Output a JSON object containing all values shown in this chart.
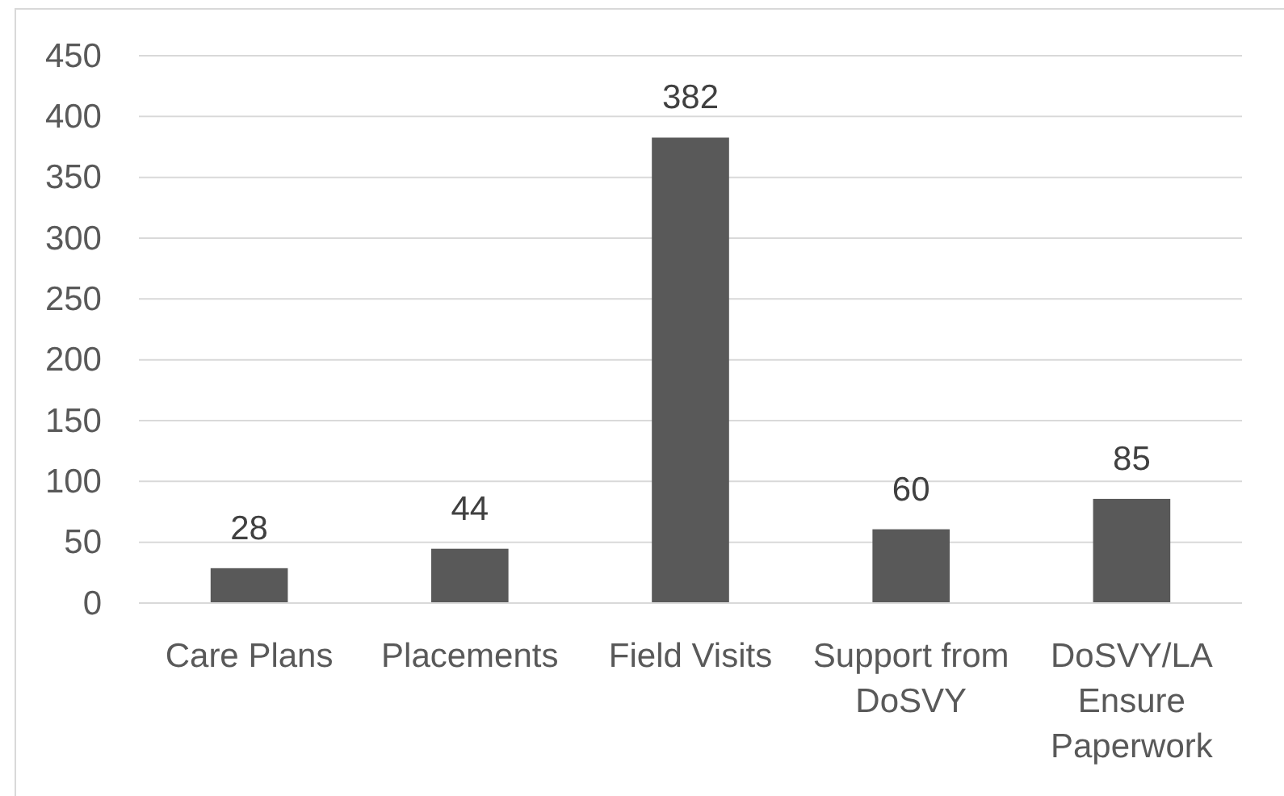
{
  "chart_data": {
    "type": "bar",
    "categories": [
      "Care Plans",
      "Placements",
      "Field Visits",
      "Support from DoSVY",
      "DoSVY/LA Ensure Paperwork"
    ],
    "values": [
      28,
      44,
      382,
      60,
      85
    ],
    "color": "#595959",
    "ylim": [
      0,
      450
    ],
    "yticks": [
      0,
      50,
      100,
      150,
      200,
      250,
      300,
      350,
      400,
      450
    ],
    "grid": "y",
    "data_labels": true
  }
}
